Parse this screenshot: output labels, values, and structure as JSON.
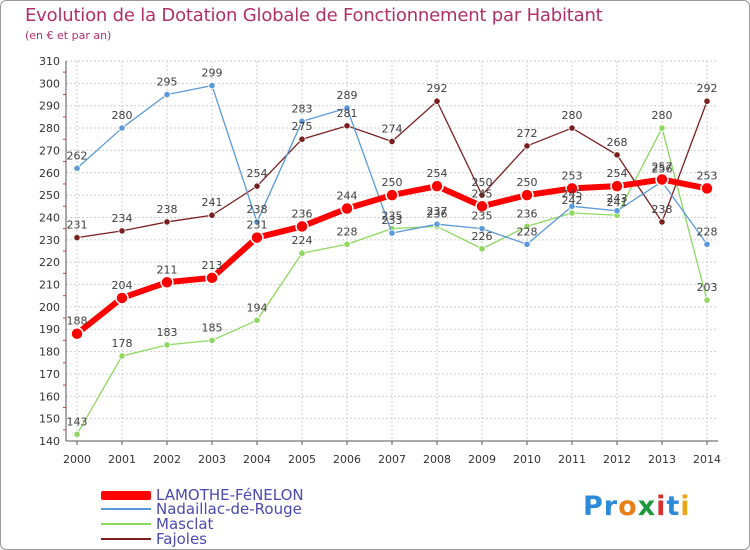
{
  "title": "Evolution de la Dotation Globale de Fonctionnement par Habitant",
  "subtitle": "(en € et par an)",
  "logo": {
    "text": "Proxiti",
    "letters": [
      "P",
      "r",
      "o",
      "x",
      "i",
      "t",
      "i"
    ],
    "colors": [
      "#2c8ad8",
      "#2c8ad8",
      "#e8801a",
      "#1a9a3a",
      "#d83030",
      "#2c8ad8",
      "#e8a81a"
    ]
  },
  "chart_data": {
    "type": "line",
    "title": "Evolution de la Dotation Globale de Fonctionnement par Habitant",
    "subtitle": "(en € et par an)",
    "xlabel": "",
    "ylabel": "",
    "ylim": [
      140,
      310
    ],
    "yticks": [
      140,
      150,
      160,
      170,
      180,
      190,
      200,
      210,
      220,
      230,
      240,
      250,
      260,
      270,
      280,
      290,
      300,
      310
    ],
    "categories": [
      "2000",
      "2001",
      "2002",
      "2003",
      "2004",
      "2005",
      "2006",
      "2007",
      "2008",
      "2009",
      "2010",
      "2011",
      "2012",
      "2013",
      "2014"
    ],
    "series": [
      {
        "name": "Fajoles",
        "color": "#7a1f1f",
        "values": [
          231,
          234,
          238,
          241,
          254,
          275,
          281,
          274,
          292,
          250,
          272,
          280,
          268,
          238,
          292
        ]
      },
      {
        "name": "Masclat",
        "color": "#8ed860",
        "values": [
          143,
          178,
          183,
          185,
          194,
          224,
          228,
          235,
          236,
          226,
          236,
          242,
          241,
          280,
          203
        ]
      },
      {
        "name": "Nadaillac-de-Rouge",
        "color": "#5a9ad8",
        "values": [
          262,
          280,
          295,
          299,
          238,
          283,
          289,
          233,
          237,
          235,
          228,
          245,
          243,
          256,
          228
        ]
      },
      {
        "name": "LAMOTHE-FéNELON",
        "color": "#ff0000",
        "values": [
          188,
          204,
          211,
          213,
          231,
          236,
          244,
          250,
          254,
          245,
          250,
          253,
          254,
          257,
          253
        ]
      }
    ],
    "legend": [
      "LAMOTHE-FéNELON",
      "Nadaillac-de-Rouge",
      "Masclat",
      "Fajoles"
    ]
  }
}
